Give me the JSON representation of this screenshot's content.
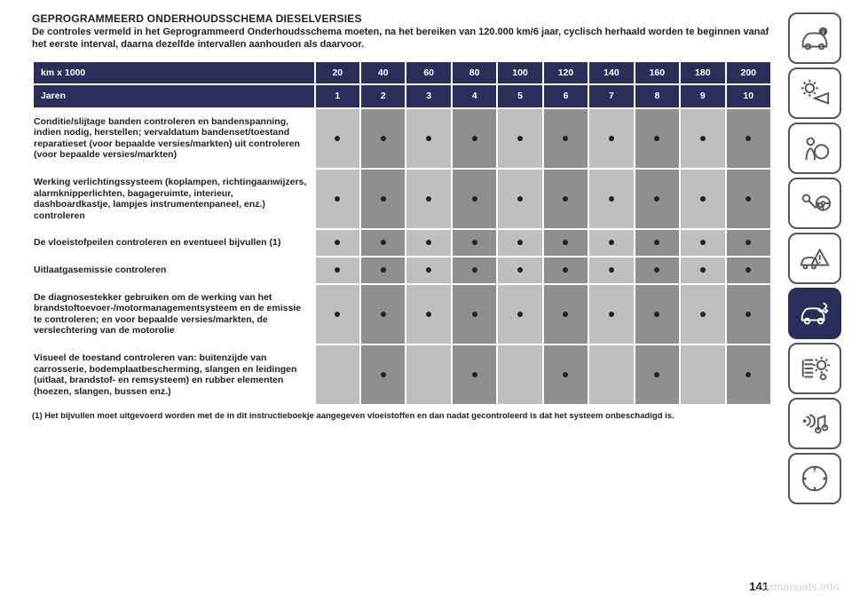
{
  "heading": "GEPROGRAMMEERD ONDERHOUDSSCHEMA DIESELVERSIES",
  "intro": "De controles vermeld in het Geprogrammeerd Onderhoudsschema moeten, na het bereiken van 120.000 km/6 jaar, cyclisch herhaald worden te beginnen vanaf het eerste interval, daarna dezelfde intervallen aanhouden als daarvoor.",
  "table": {
    "header_bg": "#2a2f5a",
    "alt_a": "#bfbfbf",
    "alt_b": "#8f8f8f",
    "header_rows": [
      {
        "label": "km x 1000",
        "values": [
          "20",
          "40",
          "60",
          "80",
          "100",
          "120",
          "140",
          "160",
          "180",
          "200"
        ]
      },
      {
        "label": "Jaren",
        "values": [
          "1",
          "2",
          "3",
          "4",
          "5",
          "6",
          "7",
          "8",
          "9",
          "10"
        ]
      }
    ],
    "rows": [
      {
        "label": "Conditie/slijtage banden controleren en bandenspanning, indien nodig, herstellen; vervaldatum bandenset/toestand reparatieset (voor bepaalde versies/markten) uit controleren (voor bepaalde versies/markten)",
        "dots": [
          1,
          1,
          1,
          1,
          1,
          1,
          1,
          1,
          1,
          1
        ]
      },
      {
        "label": "Werking verlichtingssysteem (koplampen, richtingaanwijzers, alarmknipperlichten, bagageruimte, interieur, dashboardkastje, lampjes instrumentenpaneel, enz.) controleren",
        "dots": [
          1,
          1,
          1,
          1,
          1,
          1,
          1,
          1,
          1,
          1
        ]
      },
      {
        "label": "De vloeistofpeilen controleren en eventueel bijvullen (1)",
        "dots": [
          1,
          1,
          1,
          1,
          1,
          1,
          1,
          1,
          1,
          1
        ]
      },
      {
        "label": "Uitlaatgasemissie controleren",
        "dots": [
          1,
          1,
          1,
          1,
          1,
          1,
          1,
          1,
          1,
          1
        ]
      },
      {
        "label": "De diagnosestekker gebruiken om de werking van het brandstoftoevoer-/motormanagementsysteem en de emissie te controleren; en voor bepaalde versies/markten, de verslechtering van de motorolie",
        "dots": [
          1,
          1,
          1,
          1,
          1,
          1,
          1,
          1,
          1,
          1
        ]
      },
      {
        "label": "Visueel de toestand controleren van: buitenzijde van carrosserie, bodemplaatbescherming, slangen en leidingen (uitlaat, brandstof- en remsysteem) en rubber elementen (hoezen, slangen, bussen enz.)",
        "dots": [
          0,
          1,
          0,
          1,
          0,
          1,
          0,
          1,
          0,
          1
        ]
      }
    ]
  },
  "footnote": "(1) Het bijvullen moet uitgevoerd worden met de in dit instructieboekje aangegeven vloeistoffen en dan nadat gecontroleerd is dat het systeem onbeschadigd is.",
  "page_number": "141",
  "watermark": "carmanuals.info",
  "sidebar_icons": [
    {
      "name": "car-info-icon",
      "active": false
    },
    {
      "name": "lights-icon",
      "active": false
    },
    {
      "name": "airbag-icon",
      "active": false
    },
    {
      "name": "key-steering-icon",
      "active": false
    },
    {
      "name": "crash-warning-icon",
      "active": false
    },
    {
      "name": "car-service-icon",
      "active": true
    },
    {
      "name": "settings-list-icon",
      "active": false
    },
    {
      "name": "media-icon",
      "active": false
    },
    {
      "name": "compass-icon",
      "active": false
    }
  ]
}
